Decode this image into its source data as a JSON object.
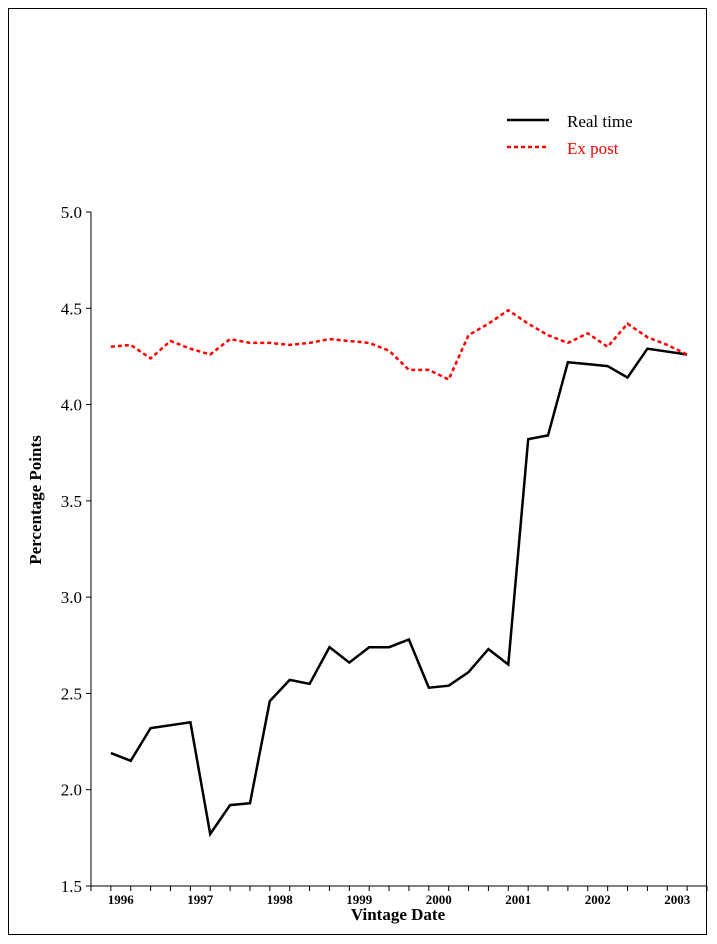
{
  "chart_data": {
    "type": "line",
    "title": "",
    "xlabel": "Vintage Date",
    "ylabel": "Percentage Points",
    "ylim": [
      1.5,
      5.0
    ],
    "yticks": [
      "1.5",
      "2.0",
      "2.5",
      "3.0",
      "3.5",
      "4.0",
      "4.5",
      "5.0"
    ],
    "xlim": [
      1996.0,
      2003.75
    ],
    "xticks": [
      "1996",
      "1997",
      "1998",
      "1999",
      "2000",
      "2001",
      "2002",
      "2003"
    ],
    "grid": false,
    "legend": "top-right",
    "series": [
      {
        "name": "Real time",
        "color": "#000000",
        "style": "solid",
        "x": [
          1996.25,
          1996.5,
          1996.75,
          1997.25,
          1997.5,
          1997.75,
          1998.0,
          1998.25,
          1998.5,
          1998.75,
          1999.0,
          1999.25,
          1999.5,
          1999.75,
          2000.0,
          2000.25,
          2000.5,
          2000.75,
          2001.0,
          2001.25,
          2001.5,
          2001.75,
          2002.0,
          2002.25,
          2002.5,
          2002.75,
          2003.0,
          2003.5
        ],
        "values": [
          2.19,
          2.15,
          2.32,
          2.35,
          1.77,
          1.92,
          1.93,
          2.46,
          2.57,
          2.55,
          2.74,
          2.66,
          2.74,
          2.74,
          2.78,
          2.53,
          2.54,
          2.61,
          2.73,
          2.65,
          3.82,
          3.84,
          4.22,
          4.21,
          4.2,
          4.14,
          4.29,
          4.26
        ]
      },
      {
        "name": "Ex post",
        "color": "#ff0000",
        "style": "dotted",
        "x": [
          1996.25,
          1996.5,
          1996.75,
          1997.0,
          1997.25,
          1997.5,
          1997.75,
          1998.0,
          1998.25,
          1998.5,
          1998.75,
          1999.0,
          1999.25,
          1999.5,
          1999.75,
          2000.0,
          2000.25,
          2000.5,
          2000.75,
          2001.0,
          2001.25,
          2001.5,
          2001.75,
          2002.0,
          2002.25,
          2002.5,
          2002.75,
          2003.0,
          2003.25,
          2003.5
        ],
        "values": [
          4.3,
          4.31,
          4.24,
          4.33,
          4.29,
          4.26,
          4.34,
          4.32,
          4.32,
          4.31,
          4.32,
          4.34,
          4.33,
          4.32,
          4.28,
          4.18,
          4.18,
          4.13,
          4.36,
          4.42,
          4.49,
          4.42,
          4.36,
          4.32,
          4.37,
          4.3,
          4.42,
          4.35,
          4.31,
          4.26
        ]
      }
    ]
  }
}
